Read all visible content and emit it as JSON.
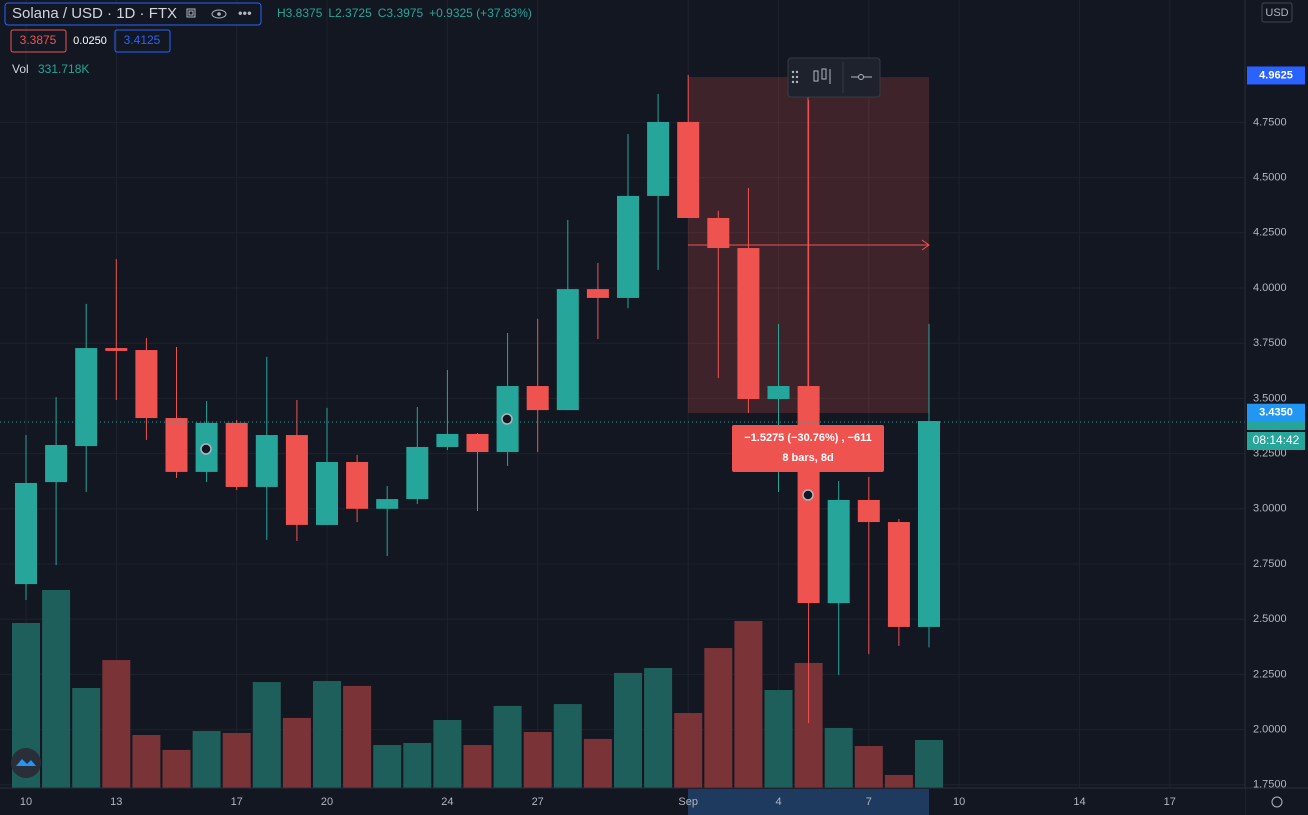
{
  "chart_data": {
    "type": "candlestick",
    "title": "Solana / USD · 1D · FTX",
    "header_stats": [
      "H3.8375",
      "L2.3725",
      "C3.3975",
      "+0.9325 (+37.83%)"
    ],
    "quote": {
      "bid": "3.3875",
      "spread": "0.0250",
      "ask": "3.4125"
    },
    "currency": "USD",
    "categories": [
      "10",
      null,
      null,
      "13",
      null,
      null,
      null,
      "17",
      null,
      null,
      "20",
      null,
      null,
      null,
      "24",
      null,
      null,
      "27",
      null,
      null,
      null,
      null,
      "Sep",
      null,
      null,
      "4",
      null,
      null,
      "7",
      null,
      null
    ],
    "future_ticks": [
      "10",
      "14",
      "17"
    ],
    "open": [
      2.659,
      3.121,
      3.284,
      3.728,
      3.719,
      3.411,
      3.167,
      3.389,
      3.099,
      3.334,
      2.927,
      3.212,
      3.0,
      3.044,
      3.28,
      3.339,
      3.257,
      3.556,
      3.447,
      3.995,
      3.955,
      4.417,
      4.752,
      4.317,
      4.181,
      3.497,
      3.556,
      2.573,
      3.04,
      2.94,
      2.465
    ],
    "high": [
      3.334,
      3.506,
      3.928,
      4.131,
      3.774,
      3.733,
      3.488,
      3.402,
      3.688,
      3.493,
      3.457,
      3.244,
      3.103,
      3.461,
      3.629,
      3.343,
      3.796,
      3.86,
      4.308,
      4.113,
      4.697,
      4.879,
      4.965,
      4.349,
      4.453,
      3.837,
      4.851,
      3.126,
      3.144,
      2.954,
      3.8375
    ],
    "low": [
      2.587,
      2.745,
      3.076,
      3.493,
      3.312,
      3.14,
      3.121,
      3.085,
      2.859,
      2.854,
      2.927,
      2.94,
      2.786,
      3.022,
      3.266,
      2.99,
      3.194,
      3.257,
      3.447,
      3.769,
      3.909,
      4.082,
      4.317,
      3.592,
      3.434,
      3.076,
      2.03,
      2.247,
      2.342,
      2.379,
      2.3725
    ],
    "close": [
      3.117,
      3.289,
      3.728,
      3.715,
      3.411,
      3.167,
      3.389,
      3.099,
      3.334,
      2.927,
      3.212,
      3.0,
      3.044,
      3.28,
      3.339,
      3.257,
      3.556,
      3.447,
      3.995,
      3.955,
      4.417,
      4.752,
      4.317,
      4.181,
      3.497,
      3.556,
      2.573,
      3.04,
      2.94,
      2.465,
      3.3975
    ],
    "volume": {
      "name": "Vol",
      "values": [
        1140,
        1368,
        691,
        884,
        366,
        263,
        394,
        380,
        732,
        484,
        739,
        705,
        297,
        311,
        470,
        297,
        567,
        387,
        580,
        339,
        795,
        829,
        518,
        967,
        1154,
        677,
        864,
        415,
        290,
        90,
        331.718
      ],
      "last_label": "331.718K"
    },
    "up_color": "#26a69a",
    "down_color": "#ef5350",
    "volume_up_color": "#1f5f5b",
    "volume_down_color": "#7a3438",
    "ylim": [
      1.7355,
      5.3043
    ],
    "yticks": [
      {
        "value": 1.75,
        "label": "1.7500"
      },
      {
        "value": 2.0,
        "label": "2.0000"
      },
      {
        "value": 2.25,
        "label": "2.2500"
      },
      {
        "value": 2.5,
        "label": "2.5000"
      },
      {
        "value": 2.75,
        "label": "2.7500"
      },
      {
        "value": 3.0,
        "label": "3.0000"
      },
      {
        "value": 3.25,
        "label": "3.2500"
      },
      {
        "value": 3.5,
        "label": "3.5000"
      },
      {
        "value": 3.75,
        "label": "3.7500"
      },
      {
        "value": 4.0,
        "label": "4.0000"
      },
      {
        "value": 4.25,
        "label": "4.2500"
      },
      {
        "value": 4.5,
        "label": "4.5000"
      },
      {
        "value": 4.75,
        "label": "4.7500"
      }
    ],
    "price_tags": [
      {
        "value": 4.9625,
        "label": "4.9625",
        "color": "#2962ff"
      },
      {
        "value": 3.435,
        "label": "3.4350",
        "color": "#2196f3"
      }
    ],
    "countdown": "08:14:42",
    "measure": {
      "line1": "−1.5275 (−30.76%) , −611",
      "line2": "8 bars, 8d"
    },
    "grid": true
  }
}
